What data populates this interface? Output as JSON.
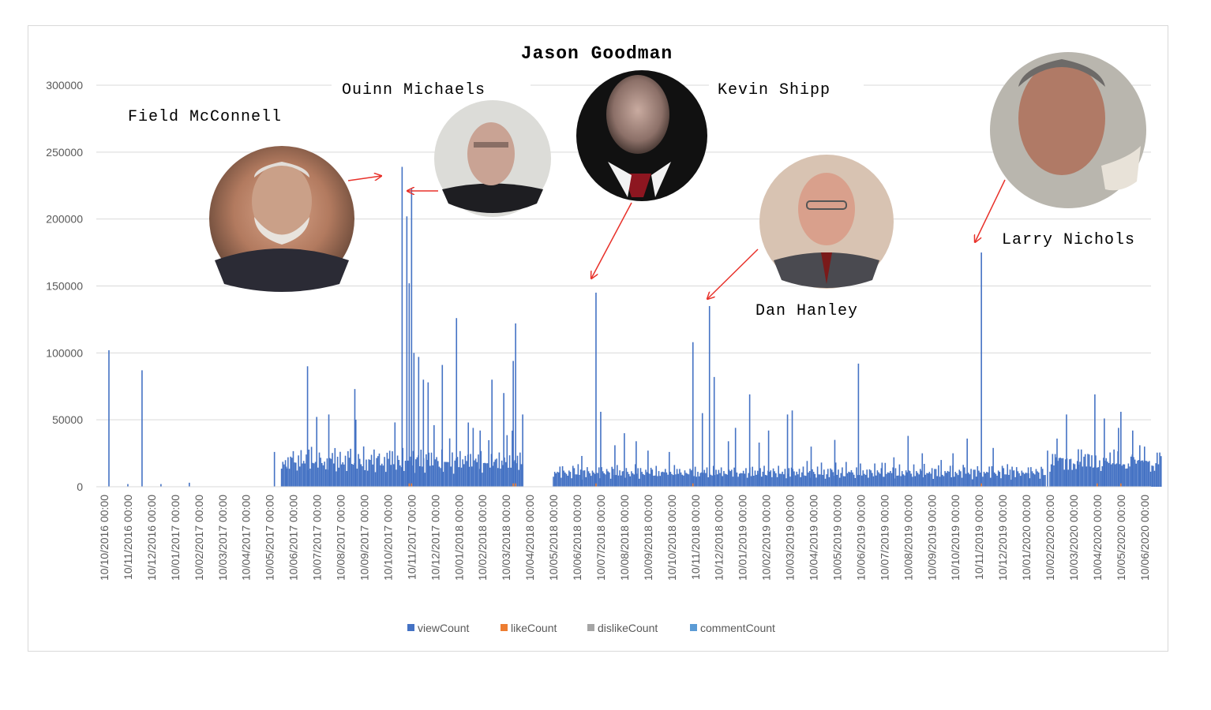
{
  "chart_data": {
    "type": "bar",
    "title": "Jason Goodman",
    "xlabel": "",
    "ylabel": "",
    "ylim": [
      0,
      300000
    ],
    "yticks": [
      "0",
      "50000",
      "100000",
      "150000",
      "200000",
      "250000",
      "300000"
    ],
    "grid": true,
    "legend_position": "bottom",
    "categories": [
      "10/10/2016 00:00",
      "10/11/2016 00:00",
      "10/12/2016 00:00",
      "10/01/2017 00:00",
      "10/02/2017 00:00",
      "10/03/2017 00:00",
      "10/04/2017 00:00",
      "10/05/2017 00:00",
      "10/06/2017 00:00",
      "10/07/2017 00:00",
      "10/08/2017 00:00",
      "10/09/2017 00:00",
      "10/10/2017 00:00",
      "10/11/2017 00:00",
      "10/12/2017 00:00",
      "10/01/2018 00:00",
      "10/02/2018 00:00",
      "10/03/2018 00:00",
      "10/04/2018 00:00",
      "10/05/2018 00:00",
      "10/06/2018 00:00",
      "10/07/2018 00:00",
      "10/08/2018 00:00",
      "10/09/2018 00:00",
      "10/10/2018 00:00",
      "10/11/2018 00:00",
      "10/12/2018 00:00",
      "10/01/2019 00:00",
      "10/02/2019 00:00",
      "10/03/2019 00:00",
      "10/04/2019 00:00",
      "10/05/2019 00:00",
      "10/06/2019 00:00",
      "10/07/2019 00:00",
      "10/08/2019 00:00",
      "10/09/2019 00:00",
      "10/10/2019 00:00",
      "10/11/2019 00:00",
      "10/12/2019 00:00",
      "10/01/2020 00:00",
      "10/02/2020 00:00",
      "10/03/2020 00:00",
      "10/04/2020 00:00",
      "10/05/2020 00:00",
      "10/06/2020 00:00"
    ],
    "series": [
      {
        "name": "viewCount",
        "color": "#4472C4",
        "peaks": [
          [
            0.2,
            102000
          ],
          [
            1.0,
            2000
          ],
          [
            1.6,
            87000
          ],
          [
            2.4,
            2000
          ],
          [
            3.6,
            3000
          ],
          [
            7.2,
            26000
          ],
          [
            7.7,
            15000
          ],
          [
            8.6,
            90000
          ],
          [
            9.5,
            54000
          ],
          [
            10.6,
            73000
          ],
          [
            12.6,
            239000
          ],
          [
            12.8,
            202000
          ],
          [
            12.9,
            152000
          ],
          [
            13.0,
            223000
          ],
          [
            13.1,
            100000
          ],
          [
            13.3,
            97000
          ],
          [
            13.5,
            80000
          ],
          [
            13.7,
            78000
          ],
          [
            14.3,
            91000
          ],
          [
            14.9,
            126000
          ],
          [
            15.4,
            48000
          ],
          [
            15.9,
            42000
          ],
          [
            16.4,
            80000
          ],
          [
            16.9,
            70000
          ],
          [
            17.3,
            94000
          ],
          [
            17.4,
            122000
          ],
          [
            17.7,
            54000
          ],
          [
            20.2,
            23000
          ],
          [
            20.8,
            145000
          ],
          [
            21.0,
            56000
          ],
          [
            21.6,
            31000
          ],
          [
            22.0,
            40000
          ],
          [
            22.5,
            34000
          ],
          [
            23.0,
            27000
          ],
          [
            23.9,
            26000
          ],
          [
            24.9,
            108000
          ],
          [
            25.3,
            55000
          ],
          [
            25.6,
            135000
          ],
          [
            25.8,
            82000
          ],
          [
            26.4,
            34000
          ],
          [
            26.7,
            44000
          ],
          [
            27.3,
            69000
          ],
          [
            27.7,
            33000
          ],
          [
            28.1,
            42000
          ],
          [
            28.9,
            54000
          ],
          [
            29.1,
            57000
          ],
          [
            29.9,
            30000
          ],
          [
            30.9,
            35000
          ],
          [
            31.9,
            92000
          ],
          [
            32.9,
            18000
          ],
          [
            33.4,
            22000
          ],
          [
            34.0,
            38000
          ],
          [
            34.6,
            25000
          ],
          [
            35.4,
            20000
          ],
          [
            35.9,
            25000
          ],
          [
            36.5,
            36000
          ],
          [
            37.1,
            175000
          ],
          [
            37.6,
            29000
          ],
          [
            38.4,
            15000
          ],
          [
            39.1,
            10000
          ],
          [
            39.9,
            27000
          ],
          [
            40.3,
            36000
          ],
          [
            40.7,
            54000
          ],
          [
            41.2,
            28000
          ],
          [
            41.9,
            69000
          ],
          [
            42.3,
            51000
          ],
          [
            42.9,
            44000
          ],
          [
            43.0,
            56000
          ],
          [
            43.5,
            42000
          ],
          [
            43.8,
            31000
          ],
          [
            44.0,
            30000
          ]
        ],
        "segments": [
          [
            7.5,
            17.7,
            [
              18000,
              20000,
              15000,
              25000,
              14000,
              19000,
              16000,
              22000,
              18000,
              30000,
              17000,
              24000,
              13000,
              21000,
              19000,
              28000,
              15000,
              23000,
              17000,
              20000,
              14000,
              26000,
              18000,
              32000,
              16000,
              22000,
              19000,
              45000,
              17000,
              25000
            ]
          ],
          [
            19.0,
            39.8,
            [
              10000,
              12000,
              9000,
              14000,
              11000,
              13000,
              8000,
              15000,
              10000,
              12000,
              9000,
              11000,
              13000,
              10000,
              8000,
              16000,
              12000,
              11000,
              9000,
              14000,
              10000,
              12000,
              7000,
              13000,
              11000,
              9000,
              15000,
              10000,
              12000,
              8000
            ]
          ],
          [
            40.0,
            44.7,
            [
              15000,
              18000,
              22000,
              20000,
              25000,
              19000,
              23000,
              21000,
              18000,
              24000,
              20000,
              17000,
              22000,
              19000,
              16000,
              21000,
              18000,
              15000,
              17000,
              14000
            ]
          ]
        ]
      },
      {
        "name": "likeCount",
        "color": "#ED7D31"
      },
      {
        "name": "dislikeCount",
        "color": "#A5A5A5"
      },
      {
        "name": "commentCount",
        "color": "#5B9BD5"
      }
    ],
    "annotations": [
      {
        "label": "Field McConnell",
        "points_to": "10/11/2017 00:00",
        "value": 239000
      },
      {
        "label": "Ouinn Michaels",
        "points_to": "10/11/2017 00:00",
        "value": 223000
      },
      {
        "label": "Kevin Shipp",
        "points_to": "10/07/2018 00:00",
        "value": 145000
      },
      {
        "label": "Dan Hanley",
        "points_to": "10/12/2018 00:00",
        "value": 135000
      },
      {
        "label": "Larry Nichols",
        "points_to": "10/12/2019 00:00",
        "value": 175000
      }
    ]
  }
}
